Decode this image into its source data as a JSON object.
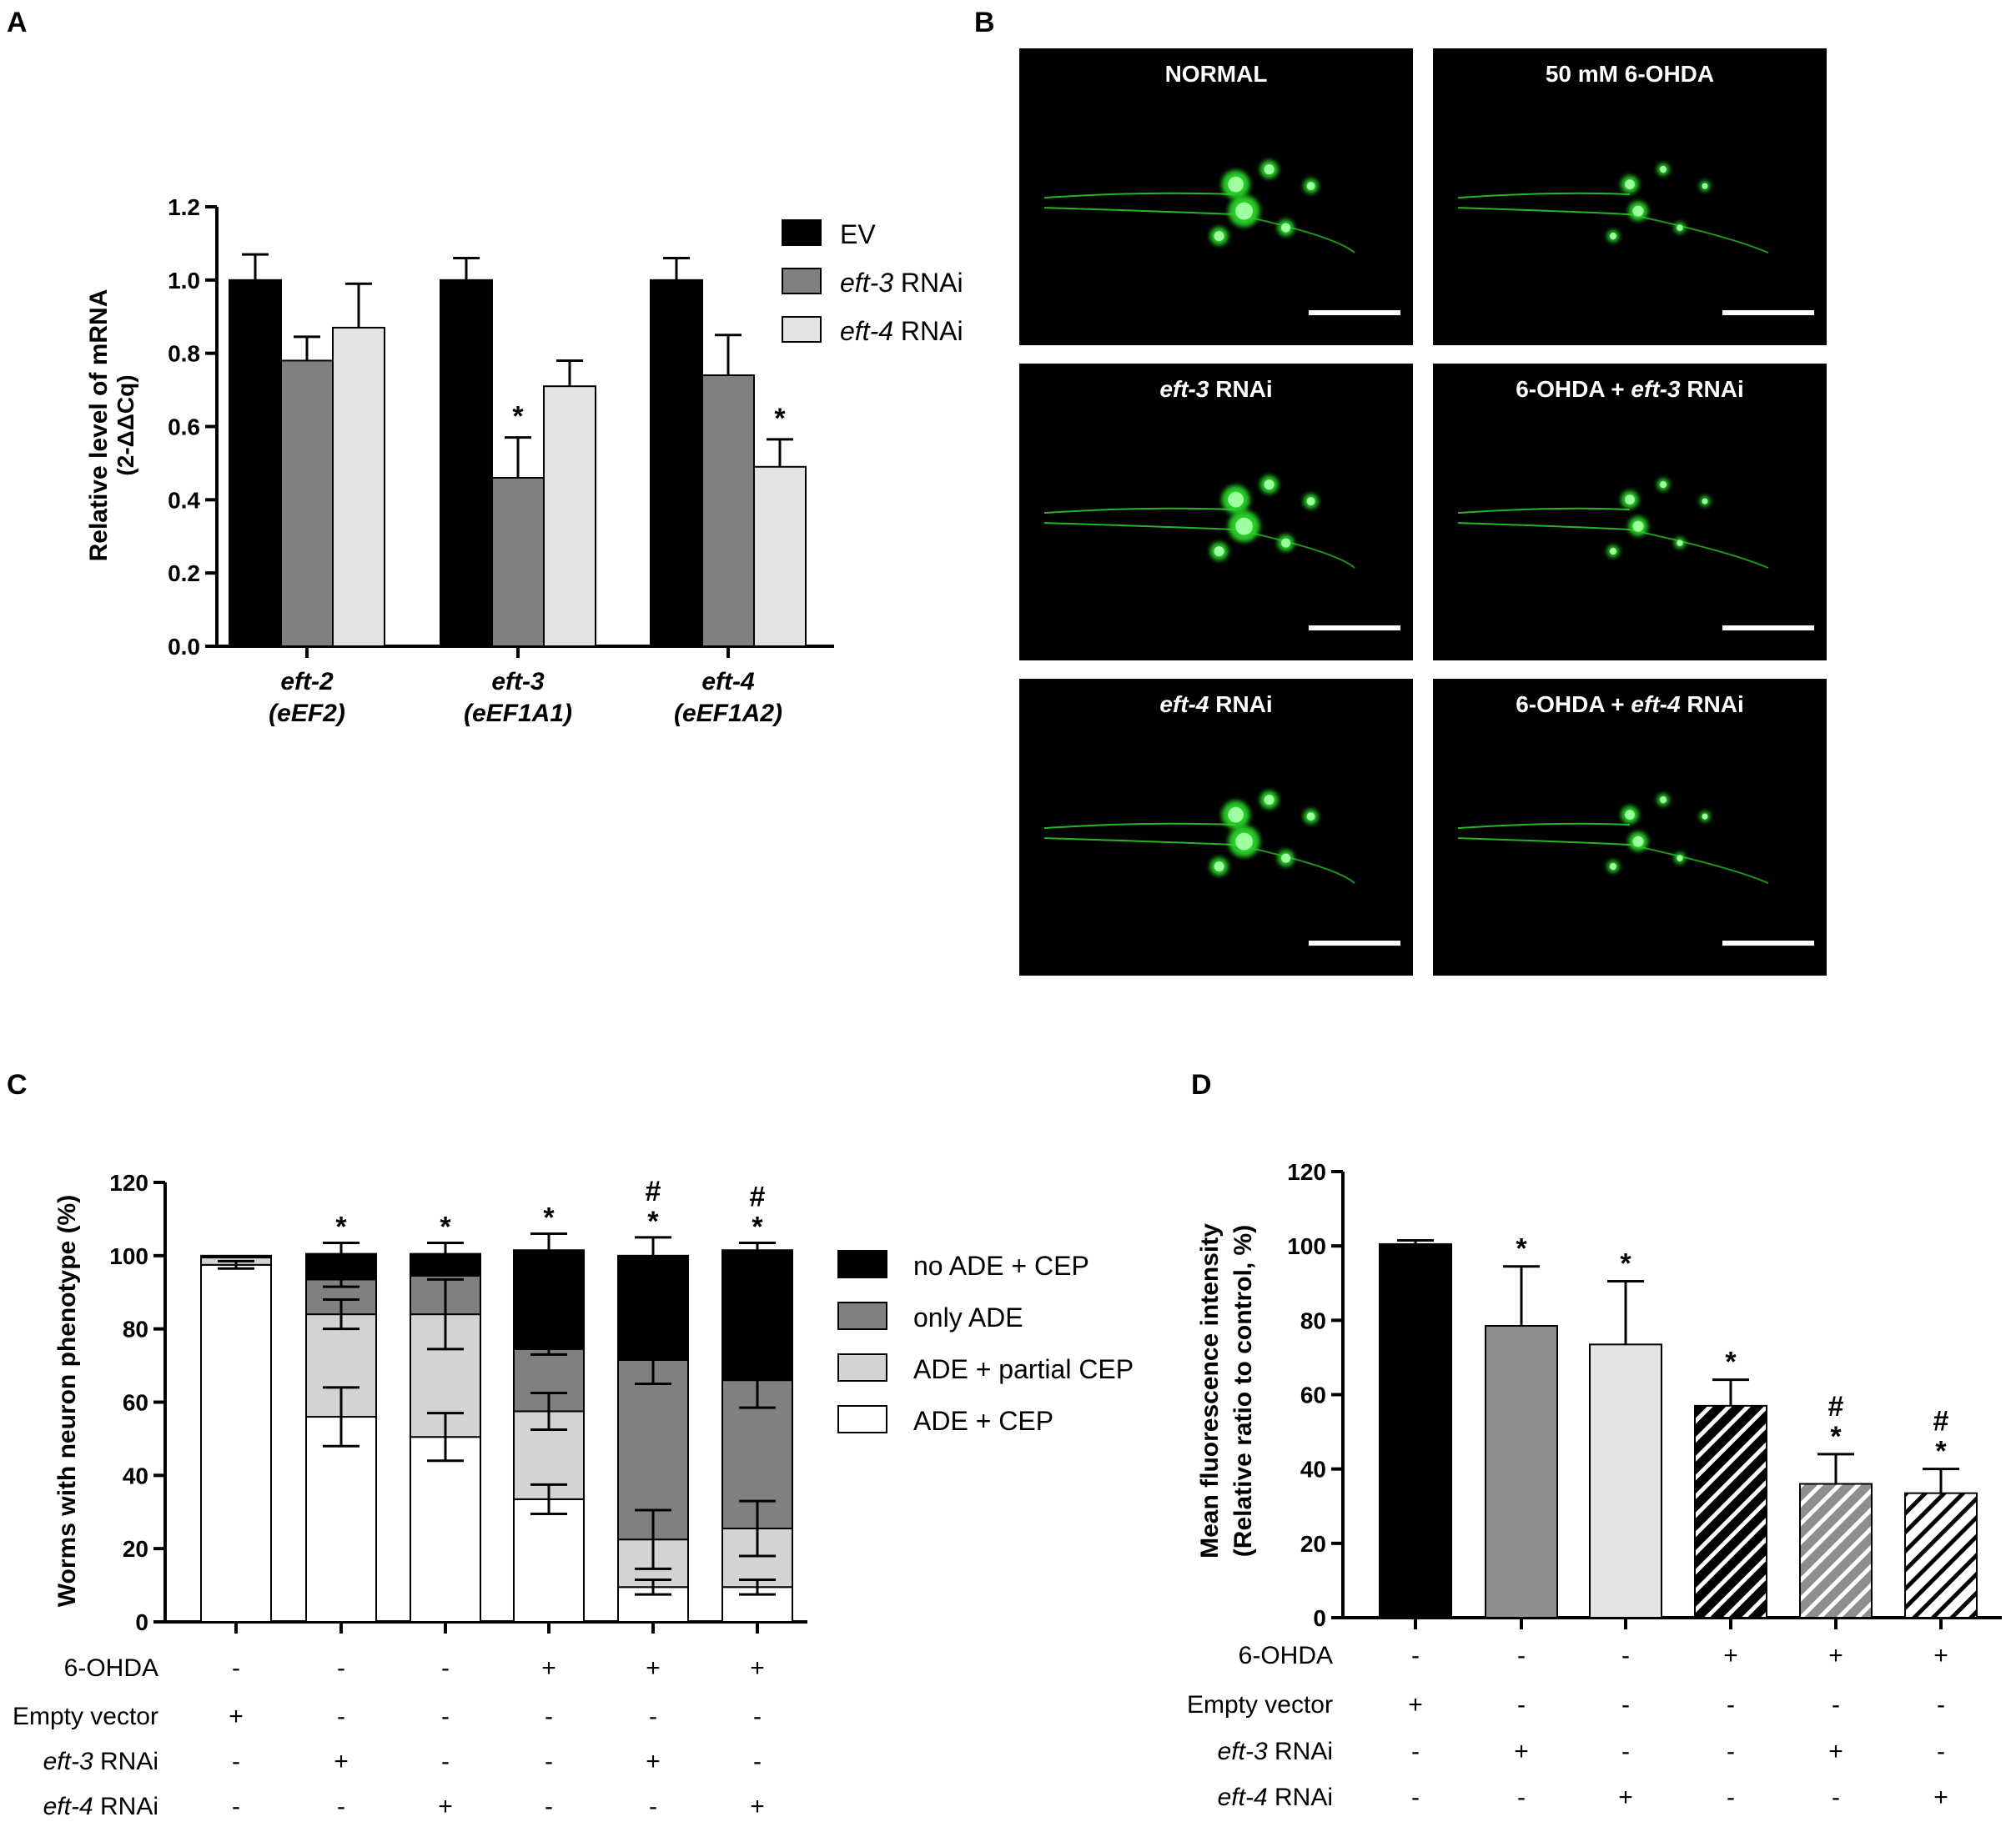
{
  "panel_letters": [
    "A",
    "B",
    "C",
    "D"
  ],
  "chart_data": [
    {
      "panel": "A",
      "type": "bar",
      "ylabel": "Relative level of mRNA",
      "ylabel2": "(2-ΔΔCq)",
      "ylim": [
        0,
        1.2
      ],
      "yticks": [
        "0.0",
        "0.2",
        "0.4",
        "0.6",
        "0.8",
        "1.0",
        "1.2"
      ],
      "categories": [
        {
          "line1": "eft-2",
          "line2": "(eEF2)"
        },
        {
          "line1": "eft-3",
          "line2": "(eEF1A1)"
        },
        {
          "line1": "eft-4",
          "line2": "(eEF1A2)"
        }
      ],
      "legend_position": "top-right",
      "series": [
        {
          "name": "EV",
          "name_italic": "",
          "name_rest": "EV",
          "color": "#000000",
          "values": [
            1.0,
            1.0,
            1.0
          ],
          "errors": [
            0.07,
            0.06,
            0.06
          ],
          "sig": [
            "",
            "",
            ""
          ]
        },
        {
          "name": "eft-3 RNAi",
          "name_italic": "eft-3",
          "name_rest": " RNAi",
          "color": "#808080",
          "values": [
            0.78,
            0.46,
            0.74
          ],
          "errors": [
            0.065,
            0.11,
            0.11
          ],
          "sig": [
            "",
            "*",
            ""
          ]
        },
        {
          "name": "eft-4 RNAi",
          "name_italic": "eft-4",
          "name_rest": " RNAi",
          "color": "#e3e3e3",
          "values": [
            0.87,
            0.71,
            0.49
          ],
          "errors": [
            0.12,
            0.07,
            0.075
          ],
          "sig": [
            "",
            "",
            "*"
          ]
        }
      ]
    },
    {
      "panel": "C",
      "type": "bar",
      "stacked": true,
      "ylabel": "Worms with neuron phenotype (%)",
      "ylim": [
        0,
        120
      ],
      "yticks": [
        "0",
        "20",
        "40",
        "60",
        "80",
        "100",
        "120"
      ],
      "legend_position": "right",
      "series": [
        {
          "name": "ADE + CEP",
          "color": "#ffffff",
          "values": [
            97.5,
            56,
            50.5,
            33.5,
            9.5,
            9.5
          ],
          "errors": [
            1,
            8,
            6.5,
            4,
            2,
            2
          ]
        },
        {
          "name": "ADE + partial CEP",
          "color": "#d3d3d3",
          "values": [
            2,
            28,
            33.5,
            24,
            13,
            16
          ],
          "errors": [
            0,
            4,
            9.5,
            5,
            8,
            7.5
          ]
        },
        {
          "name": "only ADE",
          "color": "#808080",
          "values": [
            0,
            9.5,
            10.5,
            17,
            49,
            40.5
          ],
          "errors": [
            0,
            2,
            0,
            1.5,
            6.5,
            7.5
          ]
        },
        {
          "name": "no ADE + CEP",
          "color": "#000000",
          "values": [
            0.5,
            7,
            6,
            27,
            28.5,
            35.5
          ],
          "errors": [
            0,
            3,
            3,
            4.5,
            5,
            2
          ]
        }
      ],
      "sig_star": [
        "",
        "*",
        "*",
        "*",
        "*",
        "*"
      ],
      "sig_hash": [
        "",
        "",
        "",
        "",
        "#",
        "#"
      ],
      "table": {
        "rows": [
          {
            "label": "6-OHDA",
            "label_italic": "",
            "label_rest": "6-OHDA",
            "values": [
              "-",
              "-",
              "-",
              "+",
              "+",
              "+"
            ]
          },
          {
            "label": "Empty vector",
            "label_italic": "",
            "label_rest": "Empty vector",
            "values": [
              "+",
              "-",
              "-",
              "-",
              "-",
              "-"
            ]
          },
          {
            "label": "eft-3 RNAi",
            "label_italic": "eft-3",
            "label_rest": " RNAi",
            "values": [
              "-",
              "+",
              "-",
              "-",
              "+",
              "-"
            ]
          },
          {
            "label": "eft-4 RNAi",
            "label_italic": "eft-4",
            "label_rest": " RNAi",
            "values": [
              "-",
              "-",
              "+",
              "-",
              "-",
              "+"
            ]
          }
        ]
      }
    },
    {
      "panel": "D",
      "type": "bar",
      "ylabel": "Mean fluorescence intensity",
      "ylabel2": "(Relative ratio to control, %)",
      "ylim": [
        0,
        120
      ],
      "yticks": [
        "0",
        "20",
        "40",
        "60",
        "80",
        "100",
        "120"
      ],
      "values": [
        100.5,
        78.5,
        73.5,
        57,
        36,
        33.5
      ],
      "errors": [
        1,
        16,
        17,
        7,
        8,
        6.5
      ],
      "colors": [
        "#000000",
        "#8e8e8e",
        "#e3e3e3",
        "#000000",
        "#8e8e8e",
        "#ffffff"
      ],
      "hatched": [
        false,
        false,
        false,
        true,
        true,
        true
      ],
      "sig_star": [
        "",
        "*",
        "*",
        "*",
        "*",
        "*"
      ],
      "sig_hash": [
        "",
        "",
        "",
        "",
        "#",
        "#"
      ],
      "table": {
        "rows": [
          {
            "label": "6-OHDA",
            "label_italic": "",
            "label_rest": "6-OHDA",
            "values": [
              "-",
              "-",
              "-",
              "+",
              "+",
              "+"
            ]
          },
          {
            "label": "Empty vector",
            "label_italic": "",
            "label_rest": "Empty vector",
            "values": [
              "+",
              "-",
              "-",
              "-",
              "-",
              "-"
            ]
          },
          {
            "label": "eft-3 RNAi",
            "label_italic": "eft-3",
            "label_rest": " RNAi",
            "values": [
              "-",
              "+",
              "-",
              "-",
              "+",
              "-"
            ]
          },
          {
            "label": "eft-4 RNAi",
            "label_italic": "eft-4",
            "label_rest": " RNAi",
            "values": [
              "-",
              "-",
              "+",
              "-",
              "-",
              "+"
            ]
          }
        ]
      }
    }
  ],
  "micrographs": {
    "panels": [
      {
        "title_prefix": "",
        "title_italic": "",
        "title_suffix": "NORMAL"
      },
      {
        "title_prefix": "",
        "title_italic": "",
        "title_suffix": "50 mM 6-OHDA"
      },
      {
        "title_prefix": "",
        "title_italic": "eft-3",
        "title_suffix": " RNAi"
      },
      {
        "title_prefix": "6-OHDA + ",
        "title_italic": "eft-3",
        "title_suffix": " RNAi"
      },
      {
        "title_prefix": "",
        "title_italic": "eft-4",
        "title_suffix": " RNAi"
      },
      {
        "title_prefix": "6-OHDA + ",
        "title_italic": "eft-4",
        "title_suffix": " RNAi"
      }
    ],
    "fluorescence_color": "#2bd62b"
  }
}
